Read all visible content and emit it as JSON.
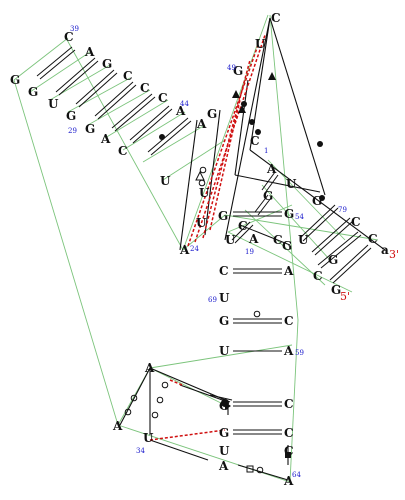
{
  "colors": {
    "background": "#ffffff",
    "base": "#111111",
    "number": "#1a1acc",
    "end_label": "#d01010",
    "pseudoknot_link": "#d01010",
    "tertiary_contact": "#7cc47c",
    "backbone": "#111111"
  },
  "diagram": {
    "bases": [
      {
        "id": "b-c-top-left",
        "text": "C"
      },
      {
        "id": "b-a-1",
        "text": "A"
      },
      {
        "id": "b-g-left-1",
        "text": "G"
      },
      {
        "id": "b-g-left-2",
        "text": "G"
      },
      {
        "id": "b-u-left",
        "text": "U"
      },
      {
        "id": "b-g-inner-1",
        "text": "G"
      },
      {
        "id": "b-c-inner-1",
        "text": "C"
      },
      {
        "id": "b-c-inner-2",
        "text": "C"
      },
      {
        "id": "b-c-inner-3",
        "text": "C"
      },
      {
        "id": "b-g-inner-2",
        "text": "G"
      },
      {
        "id": "b-g-inner-3",
        "text": "G"
      },
      {
        "id": "b-a-inner",
        "text": "A"
      },
      {
        "id": "b-a-44",
        "text": "A"
      },
      {
        "id": "b-c-lower-1",
        "text": "C"
      },
      {
        "id": "b-u-lower",
        "text": "U"
      },
      {
        "id": "b-a-mid",
        "text": "A"
      },
      {
        "id": "b-a-24",
        "text": "A"
      },
      {
        "id": "b-c-top-right",
        "text": "C"
      },
      {
        "id": "b-u-top",
        "text": "U"
      },
      {
        "id": "b-g-49",
        "text": "G"
      },
      {
        "id": "b-g-upper",
        "text": "G"
      },
      {
        "id": "b-u-stem-1",
        "text": "U"
      },
      {
        "id": "b-u-stem-2",
        "text": "U"
      },
      {
        "id": "b-c-stem",
        "text": "C"
      },
      {
        "id": "b-g-stem-1",
        "text": "G"
      },
      {
        "id": "b-a-right-1",
        "text": "A"
      },
      {
        "id": "b-u-right-1",
        "text": "U"
      },
      {
        "id": "b-g-right-1",
        "text": "G"
      },
      {
        "id": "b-u-right-2",
        "text": "U"
      },
      {
        "id": "b-c-right-1",
        "text": "C"
      },
      {
        "id": "b-c-right-2",
        "text": "C"
      },
      {
        "id": "b-a-3end",
        "text": "a"
      },
      {
        "id": "b-g-mid-1",
        "text": "G"
      },
      {
        "id": "b-c-mid-1",
        "text": "C"
      },
      {
        "id": "b-g-mid-2",
        "text": "G"
      },
      {
        "id": "b-u-mid-1",
        "text": "U"
      },
      {
        "id": "b-a-mid-2",
        "text": "A"
      },
      {
        "id": "b-c-mid-2",
        "text": "C"
      },
      {
        "id": "b-g-mid-3",
        "text": "G"
      },
      {
        "id": "b-c-mid-3",
        "text": "C"
      },
      {
        "id": "b-g-right-2",
        "text": "G"
      },
      {
        "id": "b-g-5end",
        "text": "G"
      },
      {
        "id": "b-c-col-1",
        "text": "C"
      },
      {
        "id": "b-a-col-1",
        "text": "A"
      },
      {
        "id": "b-u-69",
        "text": "U"
      },
      {
        "id": "b-g-col-1",
        "text": "G"
      },
      {
        "id": "b-c-col-2",
        "text": "C"
      },
      {
        "id": "b-u-col-1",
        "text": "U"
      },
      {
        "id": "b-a-59",
        "text": "A"
      },
      {
        "id": "b-a-loop-1",
        "text": "A"
      },
      {
        "id": "b-a-loop-2",
        "text": "A"
      },
      {
        "id": "b-u-34",
        "text": "U"
      },
      {
        "id": "b-c-low-1",
        "text": "C"
      },
      {
        "id": "b-c-low-2",
        "text": "C"
      },
      {
        "id": "b-g-low-1",
        "text": "G"
      },
      {
        "id": "b-c-low-3",
        "text": "C"
      },
      {
        "id": "b-u-low-1",
        "text": "U"
      },
      {
        "id": "b-g-low-2",
        "text": "G"
      },
      {
        "id": "b-a-low-1",
        "text": "A"
      },
      {
        "id": "b-a-64",
        "text": "A"
      }
    ],
    "numbers": [
      {
        "id": "n-39",
        "text": "39"
      },
      {
        "id": "n-29",
        "text": "29"
      },
      {
        "id": "n-44",
        "text": "44"
      },
      {
        "id": "n-49",
        "text": "49"
      },
      {
        "id": "n-24",
        "text": "24"
      },
      {
        "id": "n-54",
        "text": "54"
      },
      {
        "id": "n-19",
        "text": "19"
      },
      {
        "id": "n-79",
        "text": "79"
      },
      {
        "id": "n-69",
        "text": "69"
      },
      {
        "id": "n-59",
        "text": "59"
      },
      {
        "id": "n-34",
        "text": "34"
      },
      {
        "id": "n-64",
        "text": "64"
      },
      {
        "id": "n-1",
        "text": "1"
      }
    ],
    "ends": {
      "three_prime": "3'",
      "five_prime": "5'"
    }
  }
}
